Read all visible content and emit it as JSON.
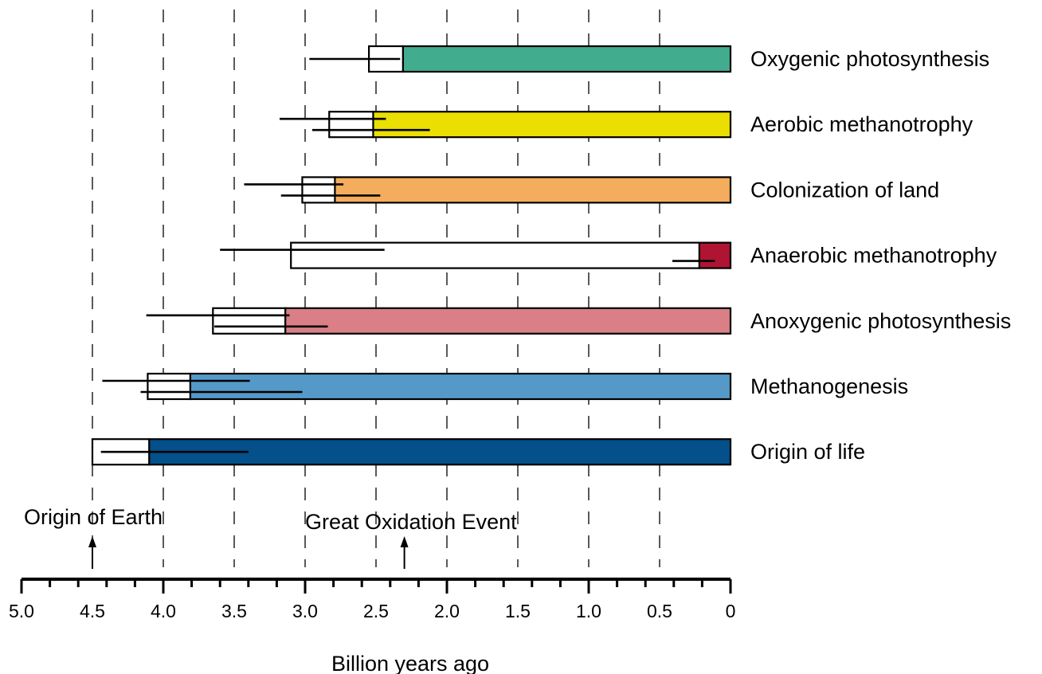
{
  "chart_data": {
    "type": "bar",
    "xlabel": "Billion years ago",
    "xlim": [
      5.0,
      0
    ],
    "x_ticks": [
      "5.0",
      "4.5",
      "4.0",
      "3.5",
      "3.0",
      "2.5",
      "2.0",
      "1.5",
      "1.0",
      "0.5",
      "0"
    ],
    "gridlines": "vertical dashed at every 0.5",
    "rows": [
      {
        "label": "Oxygenic photosynthesis",
        "color": "#42ad8e",
        "range_start": 2.55,
        "range_end": 2.31,
        "bar_end": 0,
        "errorbars": [
          {
            "from": 2.97,
            "to": 2.33
          }
        ]
      },
      {
        "label": "Aerobic methanotrophy",
        "color": "#eadf00",
        "range_start": 2.83,
        "range_end": 2.52,
        "bar_end": 0,
        "errorbars": [
          {
            "from": 3.18,
            "to": 2.43
          },
          {
            "from": 2.95,
            "to": 2.12
          }
        ]
      },
      {
        "label": "Colonization of land",
        "color": "#f4ad5c",
        "range_start": 3.02,
        "range_end": 2.79,
        "bar_end": 0,
        "errorbars": [
          {
            "from": 3.43,
            "to": 2.73
          },
          {
            "from": 3.17,
            "to": 2.47
          }
        ]
      },
      {
        "label": "Anaerobic methanotrophy",
        "color": "#b01433",
        "range_start": 3.1,
        "range_end": 0.22,
        "bar_end": 0,
        "errorbars": [
          {
            "from": 3.6,
            "to": 2.44
          },
          {
            "from": 0.41,
            "to": 0.11
          }
        ]
      },
      {
        "label": "Anoxygenic photosynthesis",
        "color": "#da7f86",
        "range_start": 3.65,
        "range_end": 3.14,
        "bar_end": 0,
        "errorbars": [
          {
            "from": 4.12,
            "to": 3.11
          },
          {
            "from": 3.64,
            "to": 2.84
          }
        ]
      },
      {
        "label": "Methanogenesis",
        "color": "#5599c8",
        "range_start": 4.11,
        "range_end": 3.81,
        "bar_end": 0,
        "errorbars": [
          {
            "from": 4.43,
            "to": 3.39
          },
          {
            "from": 4.16,
            "to": 3.02
          }
        ]
      },
      {
        "label": "Origin of life",
        "color": "#03508a",
        "range_start": 4.5,
        "range_end": 4.1,
        "bar_end": 0,
        "errorbars": [
          {
            "from": 4.44,
            "to": 3.4
          }
        ]
      }
    ],
    "annotations": [
      {
        "text": "Origin of Earth",
        "x": 4.5
      },
      {
        "text": "Great Oxidation Event",
        "x": 2.3
      }
    ]
  }
}
